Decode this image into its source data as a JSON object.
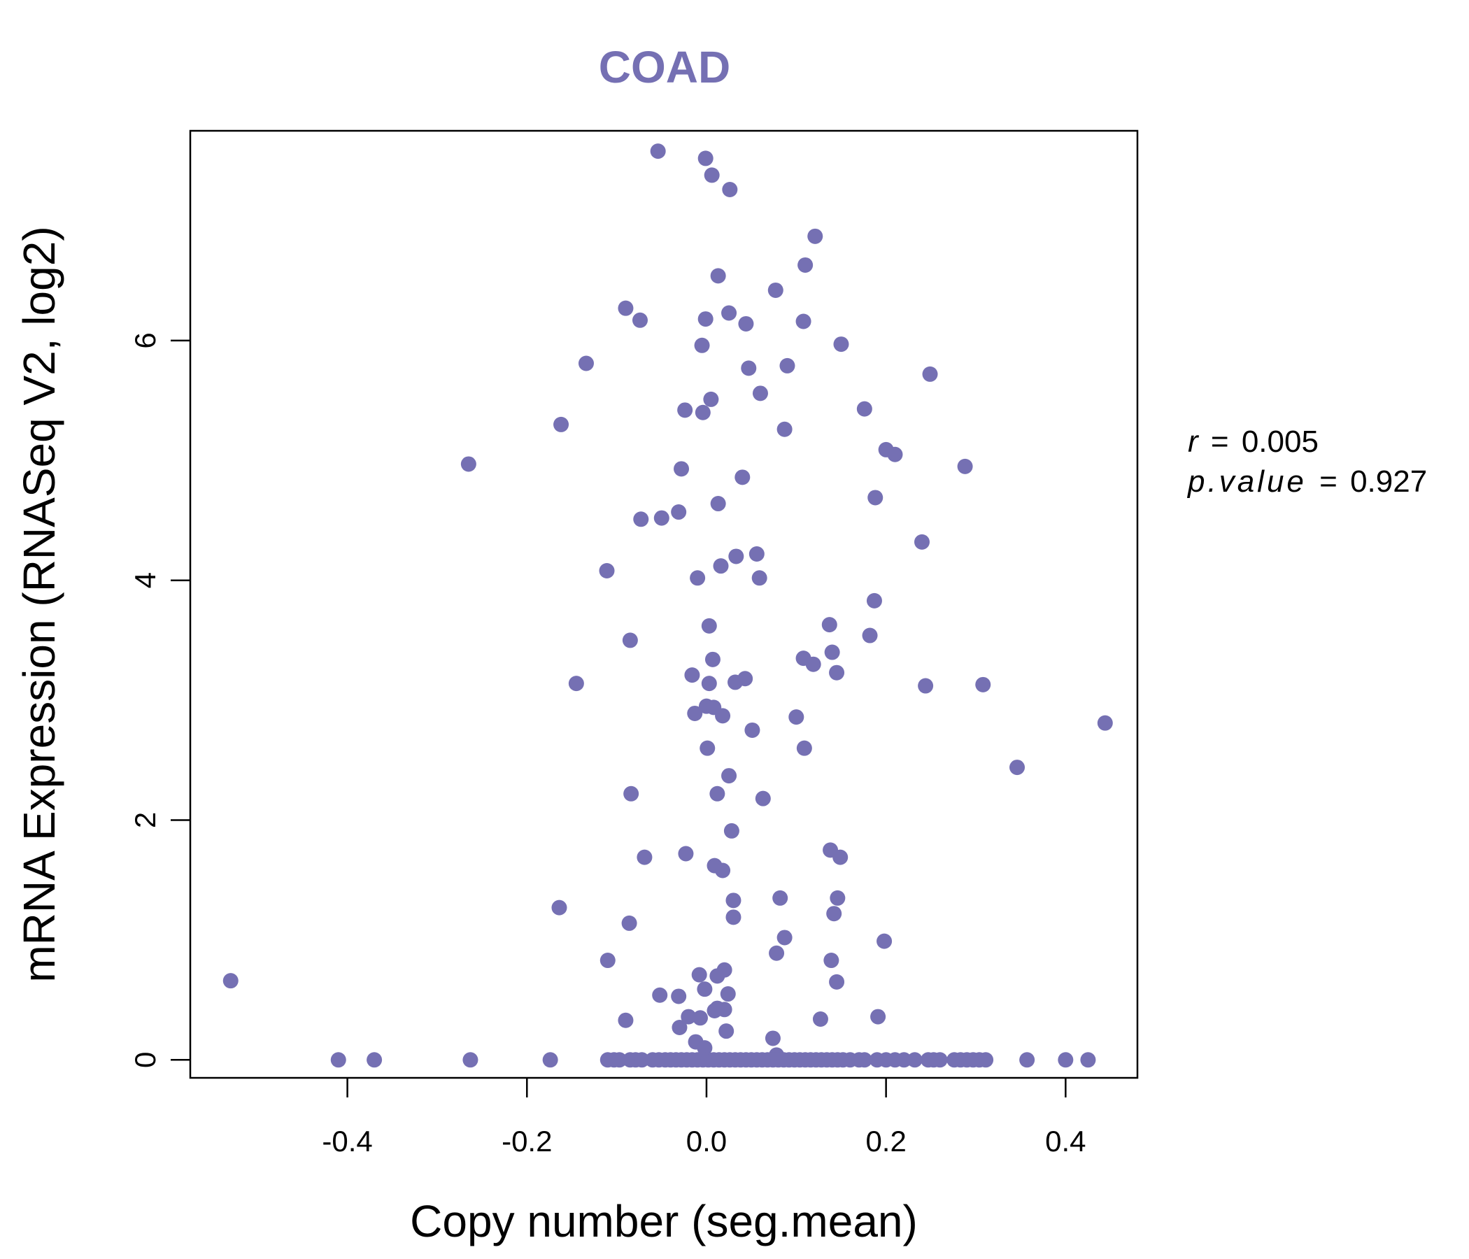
{
  "chart_data": {
    "type": "scatter",
    "title": "COAD",
    "xlabel": "Copy number (seg.mean)",
    "ylabel": "mRNA Expression (RNASeq V2, log2)",
    "xlim": [
      -0.575,
      0.48
    ],
    "ylim": [
      -0.15,
      7.75
    ],
    "xticks": [
      -0.4,
      -0.2,
      0.0,
      0.2,
      0.4
    ],
    "xtick_labels": [
      "-0.4",
      "-0.2",
      "0.0",
      "0.2",
      "0.4"
    ],
    "yticks": [
      0,
      2,
      4,
      6
    ],
    "ytick_labels": [
      "0",
      "2",
      "4",
      "6"
    ],
    "color": "#7570B3",
    "grid": false,
    "stats": {
      "r_label": "r",
      "r_value": "0.005",
      "p_label": "p.value",
      "p_value": "0.927",
      "equals": "="
    },
    "points": [
      {
        "x": -0.054,
        "y": 7.58
      },
      {
        "x": -0.001,
        "y": 7.52
      },
      {
        "x": 0.006,
        "y": 7.38
      },
      {
        "x": 0.026,
        "y": 7.26
      },
      {
        "x": 0.121,
        "y": 6.87
      },
      {
        "x": 0.11,
        "y": 6.63
      },
      {
        "x": 0.013,
        "y": 6.54
      },
      {
        "x": 0.077,
        "y": 6.42
      },
      {
        "x": -0.09,
        "y": 6.27
      },
      {
        "x": 0.025,
        "y": 6.23
      },
      {
        "x": -0.074,
        "y": 6.17
      },
      {
        "x": -0.001,
        "y": 6.18
      },
      {
        "x": 0.044,
        "y": 6.14
      },
      {
        "x": 0.108,
        "y": 6.16
      },
      {
        "x": 0.15,
        "y": 5.97
      },
      {
        "x": -0.005,
        "y": 5.96
      },
      {
        "x": -0.134,
        "y": 5.81
      },
      {
        "x": 0.047,
        "y": 5.77
      },
      {
        "x": 0.09,
        "y": 5.79
      },
      {
        "x": 0.249,
        "y": 5.72
      },
      {
        "x": 0.06,
        "y": 5.56
      },
      {
        "x": 0.005,
        "y": 5.51
      },
      {
        "x": -0.024,
        "y": 5.42
      },
      {
        "x": -0.004,
        "y": 5.4
      },
      {
        "x": 0.176,
        "y": 5.43
      },
      {
        "x": -0.162,
        "y": 5.3
      },
      {
        "x": 0.087,
        "y": 5.26
      },
      {
        "x": 0.2,
        "y": 5.09
      },
      {
        "x": 0.21,
        "y": 5.05
      },
      {
        "x": -0.265,
        "y": 4.97
      },
      {
        "x": 0.288,
        "y": 4.95
      },
      {
        "x": -0.028,
        "y": 4.93
      },
      {
        "x": 0.04,
        "y": 4.86
      },
      {
        "x": 0.188,
        "y": 4.69
      },
      {
        "x": 0.013,
        "y": 4.64
      },
      {
        "x": -0.031,
        "y": 4.57
      },
      {
        "x": -0.073,
        "y": 4.51
      },
      {
        "x": -0.05,
        "y": 4.52
      },
      {
        "x": 0.24,
        "y": 4.32
      },
      {
        "x": 0.056,
        "y": 4.22
      },
      {
        "x": 0.033,
        "y": 4.2
      },
      {
        "x": 0.016,
        "y": 4.12
      },
      {
        "x": -0.111,
        "y": 4.08
      },
      {
        "x": -0.01,
        "y": 4.02
      },
      {
        "x": 0.059,
        "y": 4.02
      },
      {
        "x": 0.187,
        "y": 3.83
      },
      {
        "x": 0.137,
        "y": 3.63
      },
      {
        "x": 0.003,
        "y": 3.62
      },
      {
        "x": 0.182,
        "y": 3.54
      },
      {
        "x": -0.085,
        "y": 3.5
      },
      {
        "x": 0.007,
        "y": 3.34
      },
      {
        "x": 0.108,
        "y": 3.35
      },
      {
        "x": 0.14,
        "y": 3.4
      },
      {
        "x": 0.119,
        "y": 3.3
      },
      {
        "x": -0.016,
        "y": 3.21
      },
      {
        "x": 0.145,
        "y": 3.23
      },
      {
        "x": 0.043,
        "y": 3.18
      },
      {
        "x": 0.032,
        "y": 3.15
      },
      {
        "x": 0.003,
        "y": 3.14
      },
      {
        "x": -0.145,
        "y": 3.14
      },
      {
        "x": 0.244,
        "y": 3.12
      },
      {
        "x": 0.308,
        "y": 3.13
      },
      {
        "x": 0.0,
        "y": 2.95
      },
      {
        "x": 0.008,
        "y": 2.94
      },
      {
        "x": -0.013,
        "y": 2.89
      },
      {
        "x": 0.018,
        "y": 2.87
      },
      {
        "x": 0.1,
        "y": 2.86
      },
      {
        "x": 0.051,
        "y": 2.75
      },
      {
        "x": 0.444,
        "y": 2.81
      },
      {
        "x": 0.001,
        "y": 2.6
      },
      {
        "x": 0.109,
        "y": 2.6
      },
      {
        "x": 0.346,
        "y": 2.44
      },
      {
        "x": 0.025,
        "y": 2.37
      },
      {
        "x": -0.084,
        "y": 2.22
      },
      {
        "x": 0.012,
        "y": 2.22
      },
      {
        "x": 0.063,
        "y": 2.18
      },
      {
        "x": 0.028,
        "y": 1.91
      },
      {
        "x": 0.138,
        "y": 1.75
      },
      {
        "x": -0.023,
        "y": 1.72
      },
      {
        "x": -0.069,
        "y": 1.69
      },
      {
        "x": 0.149,
        "y": 1.69
      },
      {
        "x": 0.009,
        "y": 1.62
      },
      {
        "x": 0.018,
        "y": 1.58
      },
      {
        "x": 0.082,
        "y": 1.35
      },
      {
        "x": 0.146,
        "y": 1.35
      },
      {
        "x": 0.03,
        "y": 1.33
      },
      {
        "x": -0.164,
        "y": 1.27
      },
      {
        "x": 0.142,
        "y": 1.22
      },
      {
        "x": 0.03,
        "y": 1.19
      },
      {
        "x": -0.086,
        "y": 1.14
      },
      {
        "x": 0.087,
        "y": 1.02
      },
      {
        "x": 0.198,
        "y": 0.99
      },
      {
        "x": 0.078,
        "y": 0.89
      },
      {
        "x": -0.11,
        "y": 0.83
      },
      {
        "x": 0.139,
        "y": 0.83
      },
      {
        "x": 0.02,
        "y": 0.75
      },
      {
        "x": -0.008,
        "y": 0.71
      },
      {
        "x": 0.012,
        "y": 0.7
      },
      {
        "x": -0.53,
        "y": 0.66
      },
      {
        "x": 0.145,
        "y": 0.65
      },
      {
        "x": -0.002,
        "y": 0.59
      },
      {
        "x": -0.052,
        "y": 0.54
      },
      {
        "x": -0.031,
        "y": 0.53
      },
      {
        "x": 0.024,
        "y": 0.55
      },
      {
        "x": 0.009,
        "y": 0.41
      },
      {
        "x": 0.02,
        "y": 0.42
      },
      {
        "x": 0.012,
        "y": 0.43
      },
      {
        "x": -0.02,
        "y": 0.36
      },
      {
        "x": -0.007,
        "y": 0.35
      },
      {
        "x": -0.09,
        "y": 0.33
      },
      {
        "x": 0.127,
        "y": 0.34
      },
      {
        "x": 0.191,
        "y": 0.36
      },
      {
        "x": -0.03,
        "y": 0.27
      },
      {
        "x": 0.022,
        "y": 0.24
      },
      {
        "x": 0.074,
        "y": 0.18
      },
      {
        "x": -0.012,
        "y": 0.15
      },
      {
        "x": -0.002,
        "y": 0.1
      },
      {
        "x": 0.078,
        "y": 0.04
      },
      {
        "x": -0.41,
        "y": 0
      },
      {
        "x": -0.37,
        "y": 0
      },
      {
        "x": -0.263,
        "y": 0
      },
      {
        "x": -0.174,
        "y": 0
      },
      {
        "x": -0.11,
        "y": 0
      },
      {
        "x": -0.103,
        "y": 0
      },
      {
        "x": -0.097,
        "y": 0
      },
      {
        "x": -0.085,
        "y": 0
      },
      {
        "x": -0.079,
        "y": 0
      },
      {
        "x": -0.072,
        "y": 0
      },
      {
        "x": -0.06,
        "y": 0
      },
      {
        "x": -0.053,
        "y": 0
      },
      {
        "x": -0.046,
        "y": 0
      },
      {
        "x": -0.04,
        "y": 0
      },
      {
        "x": -0.034,
        "y": 0
      },
      {
        "x": -0.028,
        "y": 0
      },
      {
        "x": -0.022,
        "y": 0
      },
      {
        "x": -0.016,
        "y": 0
      },
      {
        "x": -0.01,
        "y": 0
      },
      {
        "x": -0.004,
        "y": 0
      },
      {
        "x": 0.002,
        "y": 0
      },
      {
        "x": 0.008,
        "y": 0
      },
      {
        "x": 0.014,
        "y": 0
      },
      {
        "x": 0.02,
        "y": 0
      },
      {
        "x": 0.026,
        "y": 0
      },
      {
        "x": 0.032,
        "y": 0
      },
      {
        "x": 0.038,
        "y": 0
      },
      {
        "x": 0.044,
        "y": 0
      },
      {
        "x": 0.05,
        "y": 0
      },
      {
        "x": 0.056,
        "y": 0
      },
      {
        "x": 0.062,
        "y": 0
      },
      {
        "x": 0.068,
        "y": 0
      },
      {
        "x": 0.074,
        "y": 0
      },
      {
        "x": 0.08,
        "y": 0
      },
      {
        "x": 0.086,
        "y": 0
      },
      {
        "x": 0.092,
        "y": 0
      },
      {
        "x": 0.098,
        "y": 0
      },
      {
        "x": 0.104,
        "y": 0
      },
      {
        "x": 0.11,
        "y": 0
      },
      {
        "x": 0.116,
        "y": 0
      },
      {
        "x": 0.122,
        "y": 0
      },
      {
        "x": 0.128,
        "y": 0
      },
      {
        "x": 0.134,
        "y": 0
      },
      {
        "x": 0.14,
        "y": 0
      },
      {
        "x": 0.146,
        "y": 0
      },
      {
        "x": 0.152,
        "y": 0
      },
      {
        "x": 0.16,
        "y": 0
      },
      {
        "x": 0.17,
        "y": 0
      },
      {
        "x": 0.176,
        "y": 0
      },
      {
        "x": 0.19,
        "y": 0
      },
      {
        "x": 0.2,
        "y": 0
      },
      {
        "x": 0.21,
        "y": 0
      },
      {
        "x": 0.22,
        "y": 0
      },
      {
        "x": 0.232,
        "y": 0
      },
      {
        "x": 0.247,
        "y": 0
      },
      {
        "x": 0.253,
        "y": 0
      },
      {
        "x": 0.26,
        "y": 0
      },
      {
        "x": 0.276,
        "y": 0
      },
      {
        "x": 0.283,
        "y": 0
      },
      {
        "x": 0.29,
        "y": 0
      },
      {
        "x": 0.297,
        "y": 0
      },
      {
        "x": 0.304,
        "y": 0
      },
      {
        "x": 0.311,
        "y": 0
      },
      {
        "x": 0.357,
        "y": 0
      },
      {
        "x": 0.4,
        "y": 0
      },
      {
        "x": 0.425,
        "y": 0
      }
    ]
  }
}
